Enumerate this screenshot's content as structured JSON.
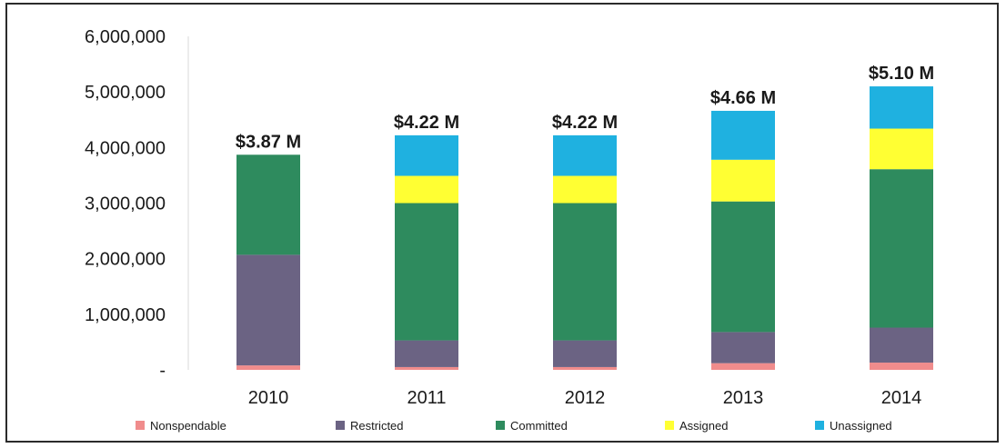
{
  "chart_data": {
    "type": "bar",
    "stacked": true,
    "categories": [
      "2010",
      "2011",
      "2012",
      "2013",
      "2014"
    ],
    "series": [
      {
        "name": "Nonspendable",
        "color": "#f08c8c",
        "values": [
          80000,
          50000,
          50000,
          120000,
          130000
        ]
      },
      {
        "name": "Restricted",
        "color": "#6b6383",
        "values": [
          1990000,
          480000,
          480000,
          560000,
          630000
        ]
      },
      {
        "name": "Committed",
        "color": "#2e8b5e",
        "values": [
          1800000,
          2470000,
          2470000,
          2350000,
          2850000
        ]
      },
      {
        "name": "Assigned",
        "color": "#ffff33",
        "values": [
          0,
          490000,
          490000,
          750000,
          730000
        ]
      },
      {
        "name": "Unassigned",
        "color": "#1fb1e0",
        "values": [
          0,
          730000,
          730000,
          880000,
          760000
        ]
      }
    ],
    "totals_labels": [
      "$3.87 M",
      "$4.22 M",
      "$4.22 M",
      "$4.66 M",
      "$5.10 M"
    ],
    "y_ticks": [
      "-",
      "1,000,000",
      "2,000,000",
      "3,000,000",
      "4,000,000",
      "5,000,000",
      "6,000,000"
    ],
    "y_tick_values": [
      0,
      1000000,
      2000000,
      3000000,
      4000000,
      5000000,
      6000000
    ],
    "ylim": [
      0,
      6000000
    ],
    "grid": false,
    "legend_position": "bottom",
    "title": "",
    "xlabel": "",
    "ylabel": ""
  }
}
